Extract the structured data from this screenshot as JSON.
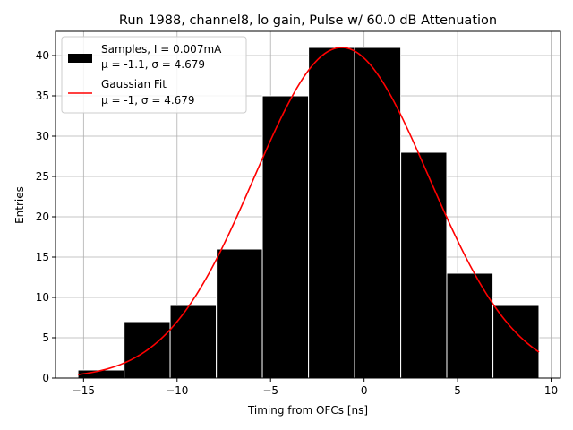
{
  "chart_data": {
    "type": "bar",
    "title": "Run 1988, channel8, lo gain, Pulse w/ 60.0 dB Attenuation",
    "xlabel": "Timing from OFCs [ns]",
    "ylabel": "Entries",
    "xlim": [
      -16.5,
      10.5
    ],
    "ylim": [
      0,
      43
    ],
    "xticks": [
      -15,
      -10,
      -5,
      0,
      5,
      10
    ],
    "yticks": [
      0,
      5,
      10,
      15,
      20,
      25,
      30,
      35,
      40
    ],
    "xtick_labels": [
      "−15",
      "−10",
      "−5",
      "0",
      "5",
      "10"
    ],
    "ytick_labels": [
      "0",
      "5",
      "10",
      "15",
      "20",
      "25",
      "30",
      "35",
      "40"
    ],
    "grid": true,
    "legend_position": "top-left",
    "bin_edges": [
      -15.3,
      -12.83,
      -10.37,
      -7.9,
      -5.44,
      -2.97,
      -0.51,
      1.96,
      4.42,
      6.89,
      9.35
    ],
    "values": [
      1,
      7,
      9,
      16,
      35,
      41,
      41,
      28,
      13,
      9
    ],
    "bar_color": "#000000",
    "fit": {
      "mu": -1.2,
      "sigma": 4.679,
      "amplitude": 41,
      "x_range": [
        -15.3,
        9.35
      ],
      "color": "#ff0000"
    },
    "legend": [
      {
        "kind": "bar",
        "line1": "Samples, I = 0.007mA",
        "line2": "μ = -1.1, σ = 4.679"
      },
      {
        "kind": "line",
        "line1": "Gaussian Fit",
        "line2": "μ = -1, σ = 4.679"
      }
    ]
  }
}
